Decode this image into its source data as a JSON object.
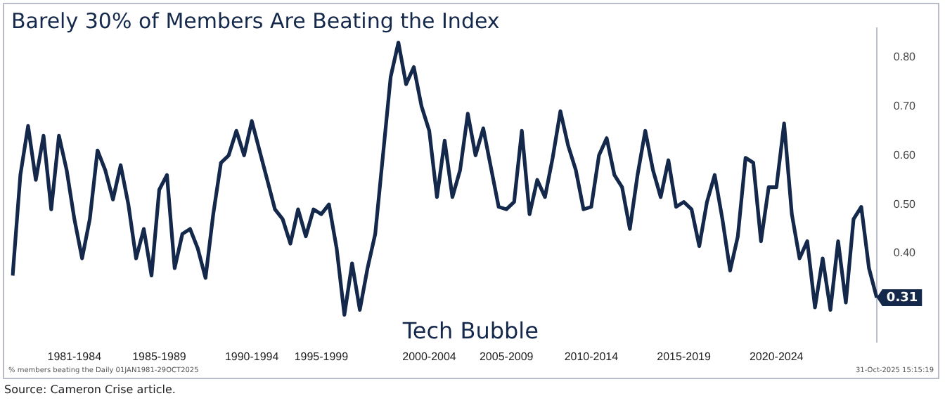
{
  "chart_data": {
    "type": "line",
    "title": "Barely 30% of Members Are Beating the Index",
    "categories": [
      null,
      null,
      null,
      null,
      null,
      null,
      null,
      null,
      "1981-1984",
      null,
      null,
      null,
      null,
      null,
      null,
      null,
      null,
      null,
      null,
      "1985-1989",
      null,
      null,
      null,
      null,
      null,
      null,
      null,
      null,
      null,
      null,
      null,
      "1990-1994",
      null,
      null,
      null,
      null,
      null,
      null,
      null,
      null,
      "1995-1999",
      null,
      null,
      null,
      null,
      null,
      null,
      null,
      null,
      null,
      null,
      null,
      null,
      null,
      "2000-2004",
      null,
      null,
      null,
      null,
      null,
      null,
      null,
      null,
      null,
      "2005-2009",
      null,
      null,
      null,
      null,
      null,
      null,
      null,
      null,
      null,
      null,
      "2010-2014",
      null,
      null,
      null,
      null,
      null,
      null,
      null,
      null,
      null,
      null,
      null,
      "2015-2019",
      null,
      null,
      null,
      null,
      null,
      null,
      null,
      null,
      null,
      null,
      null,
      "2020-2024",
      null,
      null,
      null,
      null,
      null,
      null,
      null,
      null,
      null,
      null,
      null,
      null,
      null
    ],
    "series": [
      {
        "color": "#14284b",
        "values": [
          0.355,
          0.56,
          0.66,
          0.55,
          0.64,
          0.49,
          0.64,
          0.57,
          0.47,
          0.39,
          0.47,
          0.61,
          0.57,
          0.51,
          0.58,
          0.5,
          0.39,
          0.45,
          0.355,
          0.53,
          0.56,
          0.37,
          0.44,
          0.45,
          0.41,
          0.35,
          0.48,
          0.585,
          0.6,
          0.65,
          0.6,
          0.67,
          0.61,
          0.55,
          0.49,
          0.47,
          0.42,
          0.49,
          0.435,
          0.49,
          0.48,
          0.5,
          0.41,
          0.275,
          0.38,
          0.285,
          0.37,
          0.44,
          0.6,
          0.76,
          0.83,
          0.745,
          0.78,
          0.7,
          0.65,
          0.515,
          0.63,
          0.515,
          0.57,
          0.685,
          0.6,
          0.655,
          0.575,
          0.495,
          0.49,
          0.505,
          0.65,
          0.48,
          0.55,
          0.515,
          0.595,
          0.69,
          0.62,
          0.57,
          0.49,
          0.495,
          0.6,
          0.635,
          0.56,
          0.535,
          0.45,
          0.56,
          0.65,
          0.57,
          0.515,
          0.59,
          0.495,
          0.505,
          0.49,
          0.415,
          0.505,
          0.56,
          0.47,
          0.365,
          0.435,
          0.595,
          0.585,
          0.425,
          0.535,
          0.535,
          0.665,
          0.48,
          0.39,
          0.425,
          0.29,
          0.39,
          0.285,
          0.425,
          0.3,
          0.47,
          0.495,
          0.37,
          0.31
        ]
      }
    ],
    "ylim": [
      0.22,
      0.86
    ],
    "yticks": [
      {
        "value": 0.4,
        "label": "0.40"
      },
      {
        "value": 0.5,
        "label": "0.50"
      },
      {
        "value": 0.6,
        "label": "0.60"
      },
      {
        "value": 0.7,
        "label": "0.70"
      },
      {
        "value": 0.8,
        "label": "0.80"
      }
    ],
    "grid": false,
    "legend": false,
    "marker": "none",
    "line_style": "solid",
    "annotations": [
      "Tech Bubble",
      "0.31",
      "% members beating the Daily 01JAN1981-29OCT2025",
      "31-Oct-2025 15:15:19",
      "Source: Cameron Crise article."
    ]
  }
}
